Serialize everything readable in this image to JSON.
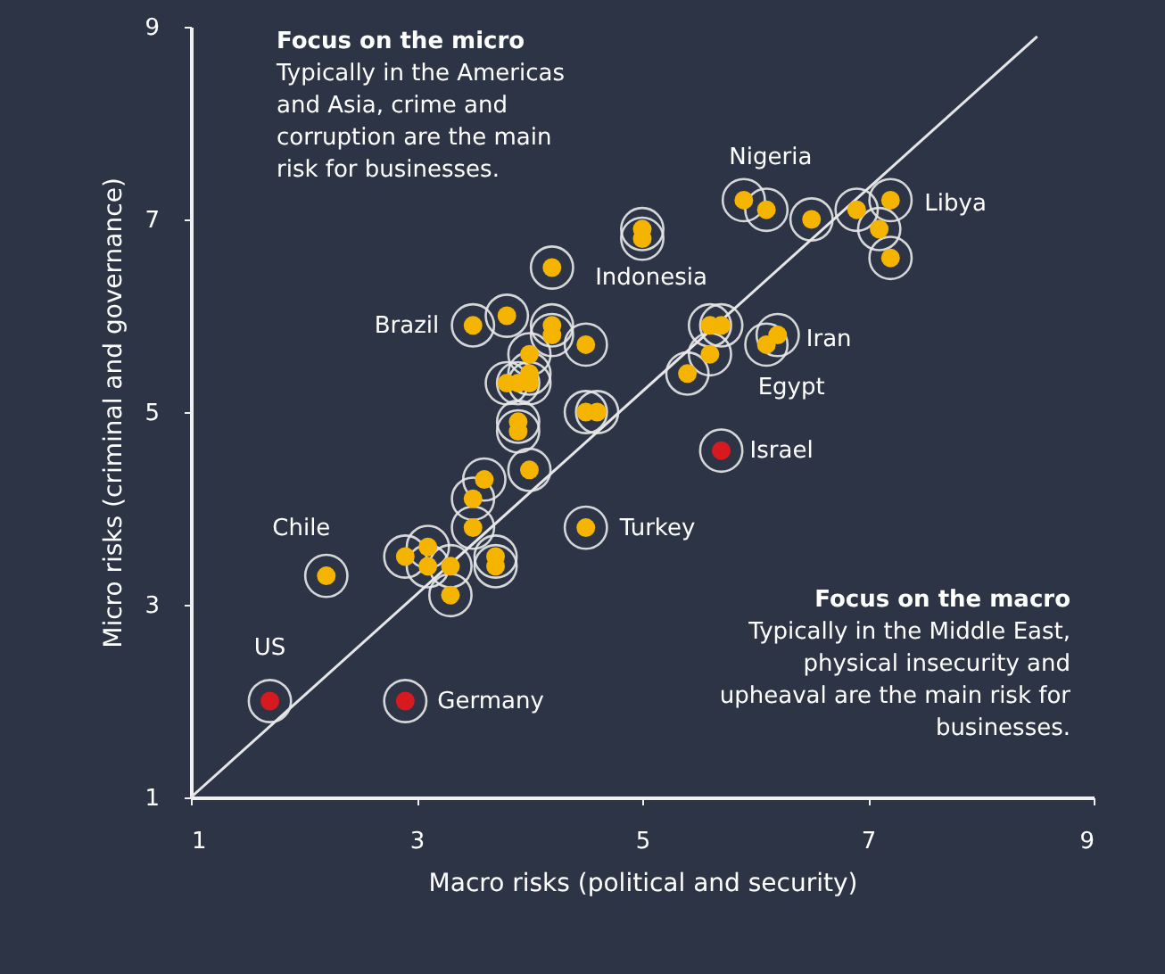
{
  "chart_data": {
    "type": "scatter",
    "xlabel": "Macro risks (political and security)",
    "ylabel": "Micro risks (criminal and governance)",
    "xlim": [
      1,
      9
    ],
    "ylim": [
      1,
      9
    ],
    "xticks": [
      1,
      3,
      5,
      7,
      9
    ],
    "yticks": [
      1,
      3,
      5,
      7,
      9
    ],
    "series": [
      {
        "type": "line",
        "color": "#e6e6e6",
        "x": [
          1,
          8.5
        ],
        "values": [
          1,
          8.9
        ]
      },
      {
        "marker": "circle",
        "color": "#f5b400",
        "x": [
          2.2,
          4.5,
          2.9,
          3.1,
          3.1,
          3.3,
          3.7,
          3.7,
          3.3,
          3.5,
          3.5,
          3.6,
          4.0,
          3.5,
          3.8,
          4.2,
          5.0,
          5.0,
          4.2,
          4.2,
          4.5,
          4.0,
          4.0,
          4.0,
          3.8,
          3.9,
          4.5,
          4.6,
          3.9,
          3.9,
          5.9,
          6.1,
          6.5,
          6.9,
          7.2,
          7.1,
          7.2,
          5.6,
          5.7,
          6.2,
          6.1,
          5.6,
          5.4
        ],
        "values": [
          3.3,
          3.8,
          3.5,
          3.6,
          3.4,
          3.4,
          3.5,
          3.4,
          3.1,
          3.8,
          4.1,
          4.3,
          4.4,
          5.9,
          6.0,
          6.5,
          6.8,
          6.9,
          5.9,
          5.8,
          5.7,
          5.6,
          5.4,
          5.3,
          5.3,
          5.3,
          5.0,
          5.0,
          4.8,
          4.9,
          7.2,
          7.1,
          7.0,
          7.1,
          7.2,
          6.9,
          6.6,
          5.9,
          5.9,
          5.8,
          5.7,
          5.6,
          5.4
        ]
      },
      {
        "marker": "circle",
        "color": "#d71920",
        "x": [
          1.7,
          2.9,
          5.7
        ],
        "values": [
          2.0,
          2.0,
          4.6
        ]
      }
    ],
    "annotations": [
      "Focus on the micro",
      "Typically in the Americas and Asia, crime and corruption are the main risk for businesses.",
      "Focus on the macro",
      "Typically in the Middle East, physical insecurity and upheaval are the main risk for businesses.",
      {
        "text": "Nigeria",
        "x": 5.9,
        "y": 7.2
      },
      {
        "text": "Libya",
        "x": 7.2,
        "y": 7.2
      },
      {
        "text": "Indonesia",
        "x": 5.0,
        "y": 6.9
      },
      {
        "text": "Brazil",
        "x": 3.5,
        "y": 5.9
      },
      {
        "text": "Iran",
        "x": 6.2,
        "y": 5.8
      },
      {
        "text": "Egypt",
        "x": 6.1,
        "y": 5.7
      },
      {
        "text": "Israel",
        "x": 5.7,
        "y": 4.6
      },
      {
        "text": "Turkey",
        "x": 4.5,
        "y": 3.8
      },
      {
        "text": "Chile",
        "x": 2.2,
        "y": 3.3
      },
      {
        "text": "US",
        "x": 1.7,
        "y": 2.0
      },
      {
        "text": "Germany",
        "x": 2.9,
        "y": 2.0
      }
    ]
  }
}
